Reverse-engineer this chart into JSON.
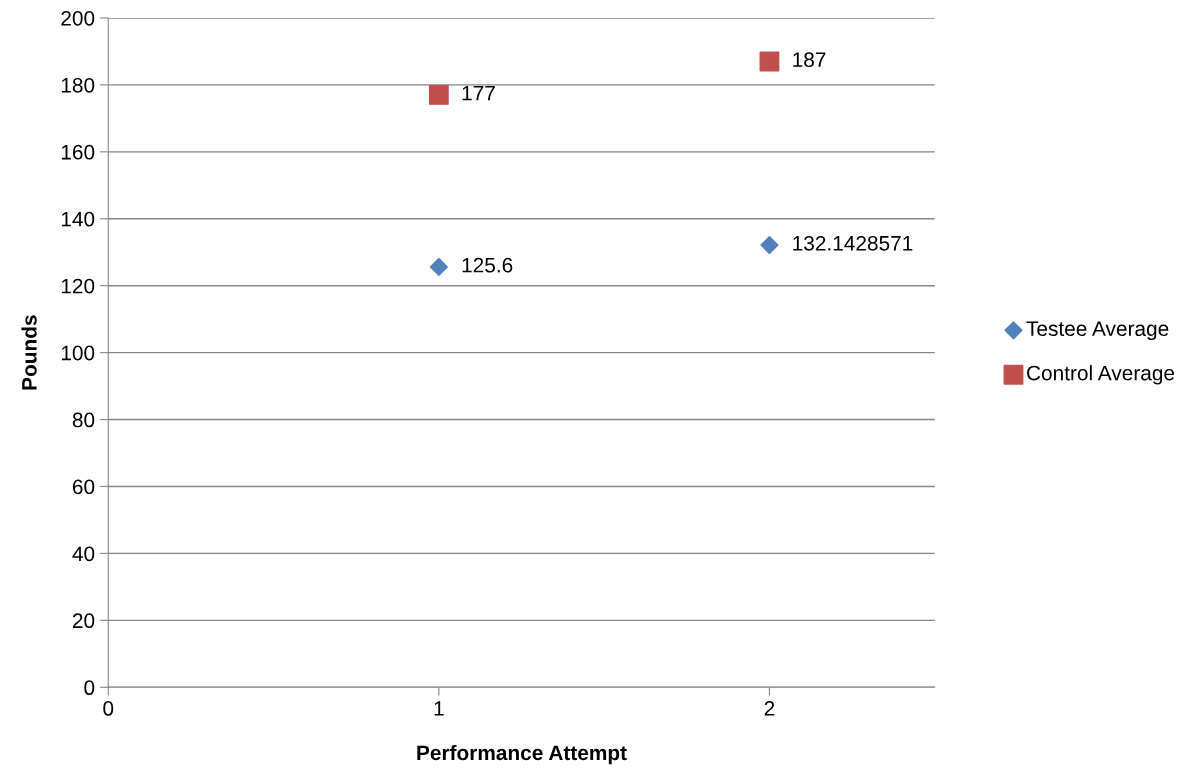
{
  "chart_data": {
    "type": "scatter",
    "xlabel": "Performance Attempt",
    "ylabel": "Pounds",
    "xlim": [
      0,
      2.5
    ],
    "xticks": [
      0,
      1,
      2
    ],
    "ylim": [
      0,
      200
    ],
    "yticks": [
      0,
      20,
      40,
      60,
      80,
      100,
      120,
      140,
      160,
      180,
      200
    ],
    "grid": "y",
    "legend": "right",
    "data_labels": true,
    "x": [
      1,
      2
    ],
    "series": [
      {
        "name": "Testee Average",
        "color": "#4f81bd",
        "marker": "diamond",
        "values": [
          125.6,
          132.1428571
        ]
      },
      {
        "name": "Control Average",
        "color": "#c0504d",
        "marker": "square",
        "values": [
          177,
          187
        ]
      }
    ]
  }
}
